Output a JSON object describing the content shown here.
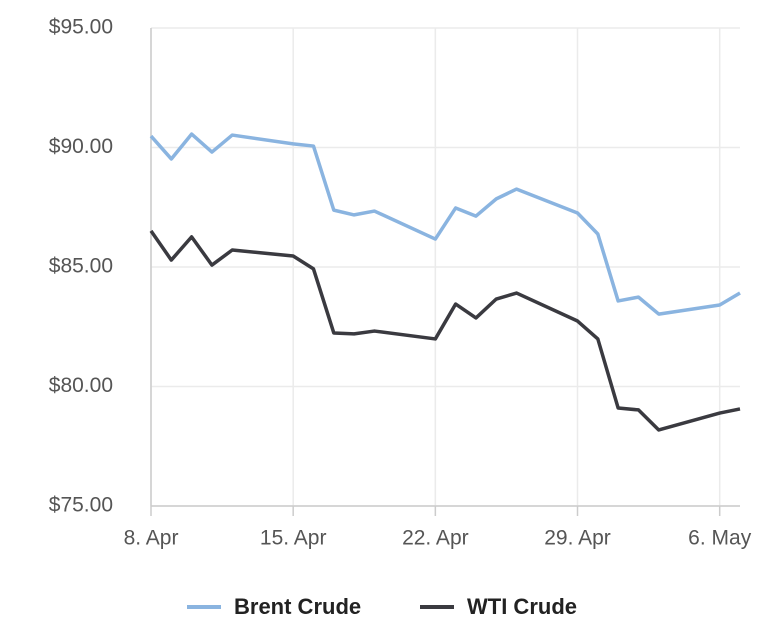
{
  "chart_data": {
    "type": "line",
    "x": [
      "04-08",
      "04-09",
      "04-10",
      "04-11",
      "04-12",
      "04-15",
      "04-16",
      "04-17",
      "04-18",
      "04-19",
      "04-22",
      "04-23",
      "04-24",
      "04-25",
      "04-26",
      "04-29",
      "04-30",
      "05-01",
      "05-02",
      "05-03",
      "05-06",
      "05-07"
    ],
    "series": [
      {
        "name": "Brent Crude",
        "color": "#8ab4e0",
        "values": [
          90.48,
          89.52,
          90.56,
          89.81,
          90.52,
          90.15,
          90.06,
          87.38,
          87.18,
          87.34,
          86.17,
          87.47,
          87.13,
          87.85,
          88.26,
          87.26,
          86.38,
          83.58,
          83.74,
          83.03,
          83.41,
          83.91
        ]
      },
      {
        "name": "WTI Crude",
        "color": "#3a3a40",
        "values": [
          86.51,
          85.29,
          86.26,
          85.08,
          85.71,
          85.46,
          84.92,
          82.24,
          82.2,
          82.32,
          81.99,
          83.45,
          82.87,
          83.66,
          83.91,
          82.74,
          81.99,
          79.1,
          79.02,
          78.18,
          78.89,
          79.06
        ]
      }
    ],
    "xlim": [
      "04-08",
      "05-07"
    ],
    "xticks": [
      {
        "value": "04-08",
        "label": "8. Apr"
      },
      {
        "value": "04-15",
        "label": "15. Apr"
      },
      {
        "value": "04-22",
        "label": "22. Apr"
      },
      {
        "value": "04-29",
        "label": "29. Apr"
      },
      {
        "value": "05-06",
        "label": "6. May"
      }
    ],
    "ylim": [
      75,
      95
    ],
    "yticks": [
      {
        "value": 75,
        "label": "$75.00"
      },
      {
        "value": 80,
        "label": "$80.00"
      },
      {
        "value": 85,
        "label": "$85.00"
      },
      {
        "value": 90,
        "label": "$90.00"
      },
      {
        "value": 95,
        "label": "$95.00"
      }
    ],
    "grid": true,
    "legend": "bottom"
  }
}
